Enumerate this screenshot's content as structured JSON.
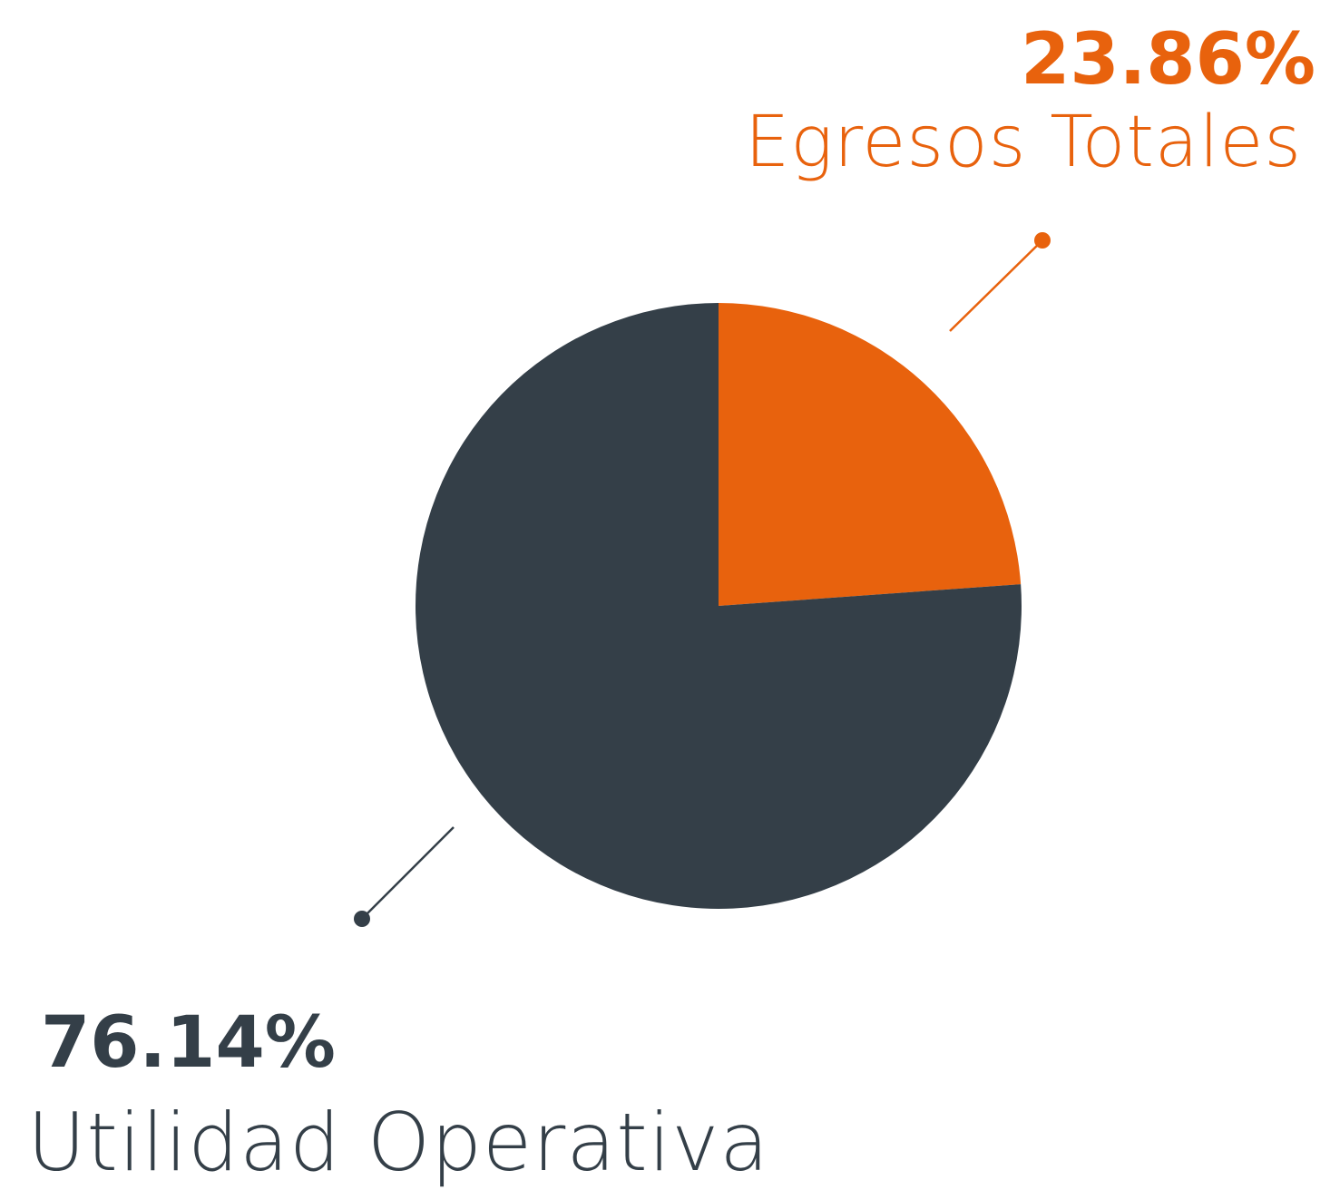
{
  "chart_data": {
    "type": "pie",
    "categories": [
      "Egresos Totales",
      "Utilidad Operativa"
    ],
    "values": [
      23.86,
      76.14
    ],
    "value_labels": [
      "23.86%",
      "76.14%"
    ],
    "colors": [
      "#e8620d",
      "#343f48"
    ]
  }
}
